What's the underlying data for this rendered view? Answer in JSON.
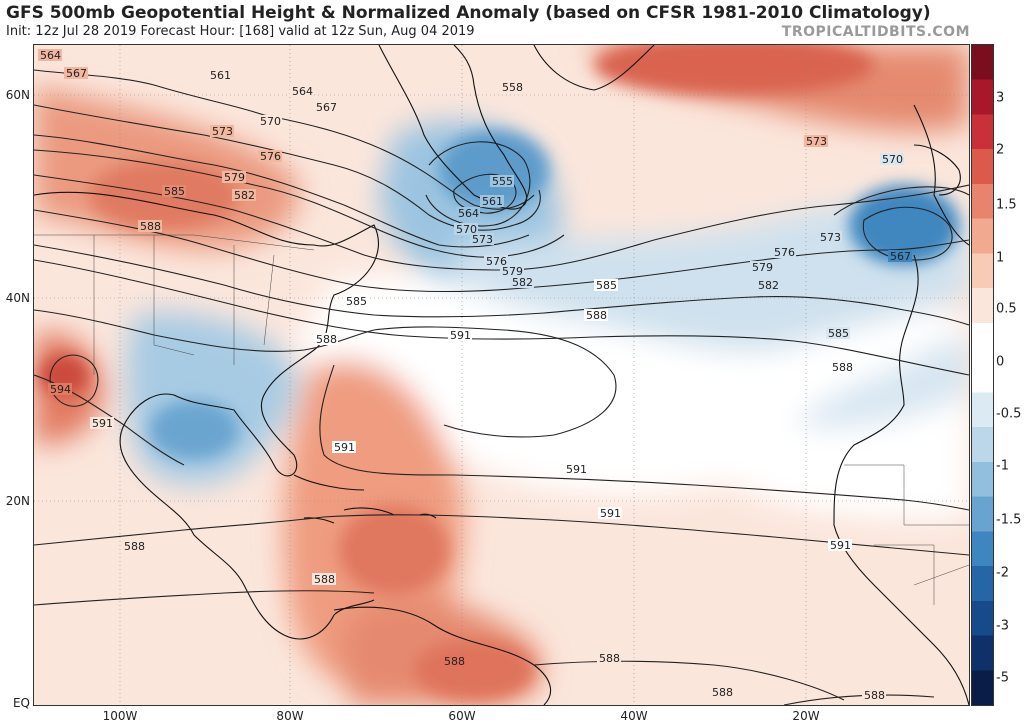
{
  "header": {
    "title": "GFS 500mb Geopotential Height & Normalized Anomaly (based on CFSR 1981-2010 Climatology)",
    "subtitle": "Init: 12z Jul 28 2019   Forecast Hour: [168]   valid at 12z Sun, Aug 04 2019",
    "watermark": "TROPICALTIDBITS.COM"
  },
  "axes": {
    "lat_labels": [
      "60N",
      "40N",
      "20N",
      "EQ"
    ],
    "lon_labels": [
      "100W",
      "80W",
      "60W",
      "40W",
      "20W"
    ]
  },
  "colorbar": {
    "labels": [
      "3",
      "2",
      "1.5",
      "1",
      "0.5",
      "0",
      "-0.5",
      "-1",
      "-1.5",
      "-2",
      "-3",
      "-5"
    ],
    "colors_top_to_bottom": [
      "#7a0d1e",
      "#a8182a",
      "#c9303a",
      "#dc5a4c",
      "#e8846d",
      "#f1a98f",
      "#f7cbb6",
      "#fbe6dc",
      "#ffffff",
      "#ffffff",
      "#dceaf4",
      "#bcd7ea",
      "#93bfde",
      "#68a4cf",
      "#3d86bf",
      "#2566a6",
      "#174a8a",
      "#0f3068",
      "#0a1d48"
    ]
  },
  "map": {
    "background_color": "#fbe6dc",
    "contour_labels": {
      "c564": "564",
      "c567": "567",
      "c561": "561",
      "c570": "570",
      "c573": "573",
      "c576": "576",
      "c579": "579",
      "c582": "582",
      "c585": "585",
      "c588": "588",
      "c591": "591",
      "c594": "594",
      "c558": "558",
      "c555": "555"
    }
  }
}
